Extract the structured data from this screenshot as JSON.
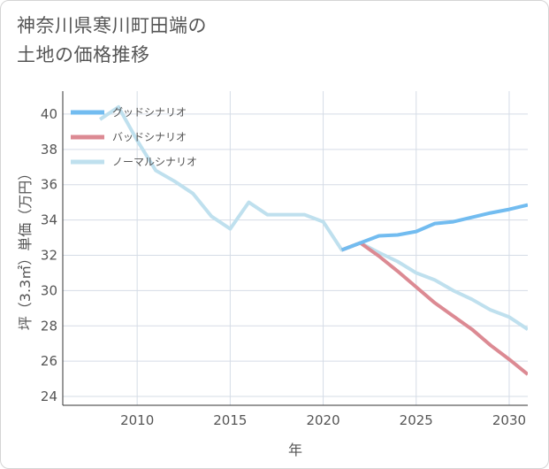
{
  "header": {
    "title_line1": "神奈川県寒川町田端の",
    "title_line2": "土地の価格推移"
  },
  "colors": {
    "good": "#72bcf0",
    "bad": "#dc8a93",
    "normal": "#bfe0ee",
    "grid": "#d5dce6",
    "axis": "#333333",
    "text": "#555555"
  },
  "chart_data": {
    "type": "line",
    "title": "神奈川県寒川町田端の土地の価格推移",
    "xlabel": "年",
    "ylabel": "坪（3.3㎡）単価（万円）",
    "xlim": [
      2006,
      2031
    ],
    "ylim": [
      23.5,
      41.3
    ],
    "xticks": [
      2010,
      2015,
      2020,
      2025,
      2030
    ],
    "yticks": [
      24,
      26,
      28,
      30,
      32,
      34,
      36,
      38,
      40
    ],
    "grid": true,
    "legend_position": "top-left",
    "series": [
      {
        "name": "グッドシナリオ",
        "color_key": "good",
        "x": [
          2021,
          2022,
          2023,
          2024,
          2025,
          2026,
          2027,
          2028,
          2029,
          2030,
          2031
        ],
        "y": [
          32.3,
          32.7,
          33.1,
          33.15,
          33.35,
          33.8,
          33.9,
          34.15,
          34.4,
          34.6,
          34.85
        ]
      },
      {
        "name": "バッドシナリオ",
        "color_key": "bad",
        "x": [
          2021,
          2022,
          2023,
          2024,
          2025,
          2026,
          2027,
          2028,
          2029,
          2030,
          2031
        ],
        "y": [
          32.3,
          32.7,
          31.95,
          31.1,
          30.2,
          29.3,
          28.55,
          27.8,
          26.9,
          26.1,
          25.25
        ]
      },
      {
        "name": "ノーマルシナリオ",
        "color_key": "normal",
        "x": [
          2008,
          2009,
          2010,
          2011,
          2012,
          2013,
          2014,
          2015,
          2016,
          2017,
          2018,
          2019,
          2020,
          2021,
          2022,
          2023,
          2024,
          2025,
          2026,
          2027,
          2028,
          2029,
          2030,
          2031
        ],
        "y": [
          39.7,
          40.4,
          38.5,
          36.8,
          36.2,
          35.5,
          34.2,
          33.5,
          35.0,
          34.3,
          34.3,
          34.3,
          33.9,
          32.3,
          32.7,
          32.15,
          31.65,
          31.0,
          30.6,
          30.0,
          29.5,
          28.9,
          28.5,
          27.8
        ]
      }
    ]
  }
}
